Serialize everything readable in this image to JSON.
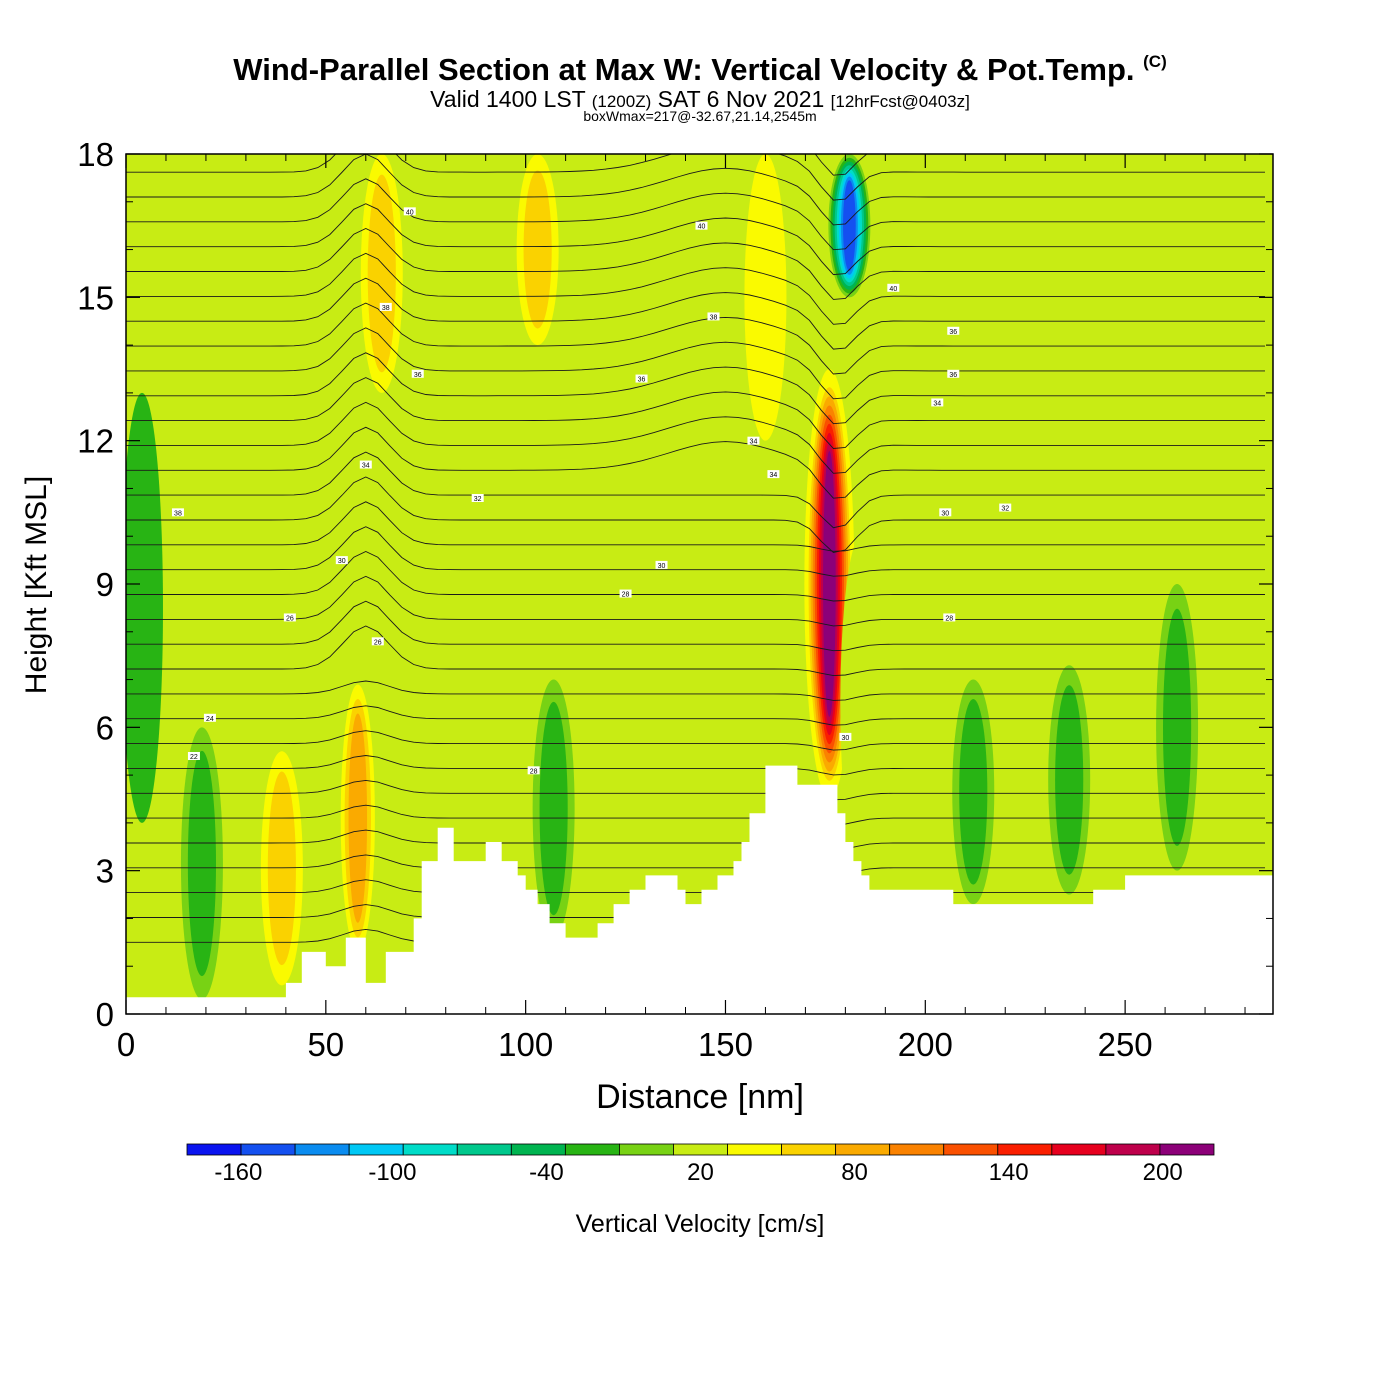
{
  "header": {
    "title": "Wind-Parallel Section at Max W: Vertical Velocity & Pot.Temp.",
    "copyright": "(C)",
    "subtitle_prefix": "Valid 1400 LST",
    "subtitle_utc": "(1200Z)",
    "subtitle_date": "SAT 6 Nov 2021",
    "subtitle_fcst": "[12hrFcst@0403z]",
    "boxwmax": "boxWmax=217@-32.67,21.14,2545m"
  },
  "chart_data": {
    "type": "heatmap",
    "xlabel": "Distance [nm]",
    "ylabel": "Height [Kft MSL]",
    "xlim": [
      0,
      287
    ],
    "ylim": [
      0,
      18
    ],
    "xticks": [
      0,
      50,
      100,
      150,
      200,
      250
    ],
    "yticks": [
      0,
      3,
      6,
      9,
      12,
      15,
      18
    ],
    "background_value": 10,
    "updrafts": [
      {
        "x": 4,
        "y_bottom": 4,
        "y_top": 13,
        "value": -15
      },
      {
        "x": 19,
        "y_bottom": 0.3,
        "y_top": 6,
        "value": -30
      },
      {
        "x": 39,
        "y_bottom": 0.6,
        "y_top": 5.5,
        "value": 60
      },
      {
        "x": 58,
        "y_bottom": 1.0,
        "y_top": 7.2,
        "value": 90
      },
      {
        "x": 64,
        "y_bottom": 13,
        "y_top": 18,
        "value": 60
      },
      {
        "x": 71,
        "y_bottom": 1.5,
        "y_top": 6.5,
        "value": 30
      },
      {
        "x": 103,
        "y_bottom": 14,
        "y_top": 18,
        "value": 60
      },
      {
        "x": 107,
        "y_bottom": 1.6,
        "y_top": 7.0,
        "value": -30
      },
      {
        "x": 160,
        "y_bottom": 12,
        "y_top": 18,
        "value": 35
      },
      {
        "x": 176,
        "y_bottom": 4.5,
        "y_top": 13.5,
        "value": 217
      },
      {
        "x": 181,
        "y_bottom": 15,
        "y_top": 18,
        "value": -150
      },
      {
        "x": 184,
        "y_bottom": 3,
        "y_top": 10,
        "value": 30
      },
      {
        "x": 212,
        "y_bottom": 2.3,
        "y_top": 7,
        "value": -30
      },
      {
        "x": 236,
        "y_bottom": 2.5,
        "y_top": 7.3,
        "value": -30
      },
      {
        "x": 263,
        "y_bottom": 3,
        "y_top": 9,
        "value": -25
      },
      {
        "x": 278,
        "y_bottom": 5,
        "y_top": 8,
        "value": 25
      }
    ],
    "terrain": {
      "x": [
        0,
        36,
        40,
        44,
        50,
        55,
        60,
        65,
        70,
        72,
        74,
        78,
        82,
        86,
        90,
        94,
        98,
        100,
        103,
        106,
        110,
        114,
        118,
        122,
        126,
        130,
        134,
        138,
        140,
        144,
        148,
        152,
        154,
        156,
        160,
        164,
        168,
        172,
        176,
        178,
        180,
        182,
        184,
        186,
        190,
        200,
        207,
        212,
        222,
        233,
        242,
        250,
        260,
        270,
        287
      ],
      "y": [
        0.35,
        0.35,
        0.65,
        1.3,
        1.0,
        1.6,
        0.65,
        1.3,
        1.3,
        2.0,
        3.2,
        3.9,
        3.2,
        3.2,
        3.6,
        3.2,
        2.9,
        2.6,
        2.3,
        1.9,
        1.6,
        1.6,
        1.9,
        2.3,
        2.6,
        2.9,
        2.9,
        2.6,
        2.3,
        2.6,
        2.9,
        3.2,
        3.6,
        4.2,
        5.2,
        5.2,
        4.8,
        4.8,
        4.8,
        4.2,
        3.6,
        3.2,
        2.9,
        2.6,
        2.6,
        2.6,
        2.3,
        2.3,
        2.3,
        2.3,
        2.6,
        2.9,
        2.9,
        2.9,
        2.9
      ]
    },
    "theta_contour_labels": [
      {
        "text": "40",
        "x": 71,
        "y": 16.8
      },
      {
        "text": "40",
        "x": 144,
        "y": 16.5
      },
      {
        "text": "38",
        "x": 65,
        "y": 14.8
      },
      {
        "text": "38",
        "x": 147,
        "y": 14.6
      },
      {
        "text": "40",
        "x": 192,
        "y": 15.2
      },
      {
        "text": "36",
        "x": 207,
        "y": 14.3
      },
      {
        "text": "36",
        "x": 73,
        "y": 13.4
      },
      {
        "text": "36",
        "x": 129,
        "y": 13.3
      },
      {
        "text": "36",
        "x": 207,
        "y": 13.4
      },
      {
        "text": "34",
        "x": 203,
        "y": 12.8
      },
      {
        "text": "34",
        "x": 60,
        "y": 11.5
      },
      {
        "text": "34",
        "x": 157,
        "y": 12.0
      },
      {
        "text": "34",
        "x": 162,
        "y": 11.3
      },
      {
        "text": "32",
        "x": 88,
        "y": 10.8
      },
      {
        "text": "32",
        "x": 220,
        "y": 10.6
      },
      {
        "text": "30",
        "x": 205,
        "y": 10.5
      },
      {
        "text": "38",
        "x": 13,
        "y": 10.5
      },
      {
        "text": "30",
        "x": 54,
        "y": 9.5
      },
      {
        "text": "30",
        "x": 134,
        "y": 9.4
      },
      {
        "text": "28",
        "x": 125,
        "y": 8.8
      },
      {
        "text": "28",
        "x": 206,
        "y": 8.3
      },
      {
        "text": "26",
        "x": 41,
        "y": 8.3
      },
      {
        "text": "26",
        "x": 63,
        "y": 7.8
      },
      {
        "text": "24",
        "x": 21,
        "y": 6.2
      },
      {
        "text": "22",
        "x": 17,
        "y": 5.4
      },
      {
        "text": "28",
        "x": 102,
        "y": 5.1
      },
      {
        "text": "30",
        "x": 180,
        "y": 5.8
      }
    ],
    "colorbar": {
      "label": "Vertical Velocity [cm/s]",
      "bounds": [
        -180,
        220
      ],
      "colors": [
        "#0a14f0",
        "#1450f0",
        "#0a8cf0",
        "#00c8f5",
        "#00dcc8",
        "#00c88c",
        "#00b450",
        "#28b414",
        "#78d214",
        "#c8ec14",
        "#fafa00",
        "#fad200",
        "#faaa00",
        "#fa8200",
        "#fa5000",
        "#fa1e00",
        "#e6001e",
        "#be004b",
        "#8c0078"
      ],
      "tick_labels": [
        "-160",
        "-100",
        "-40",
        "20",
        "80",
        "140",
        "200"
      ],
      "tick_values": [
        -160,
        -100,
        -40,
        20,
        80,
        140,
        200
      ]
    }
  }
}
